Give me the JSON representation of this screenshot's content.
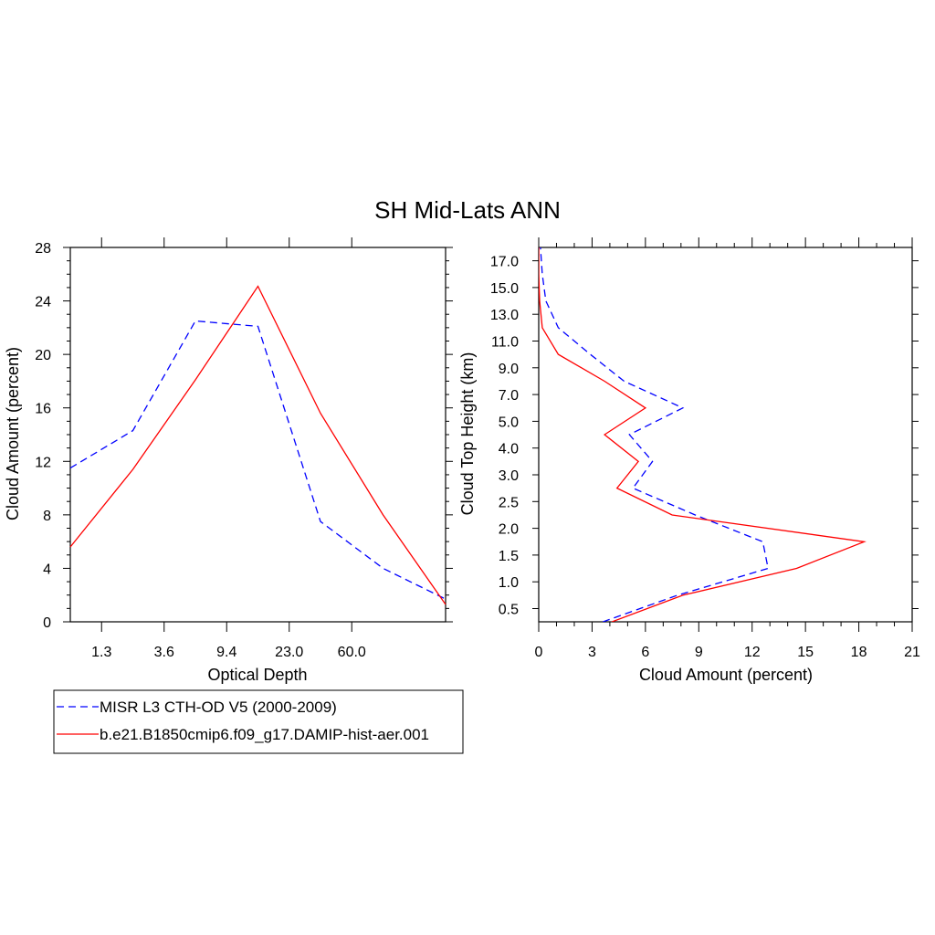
{
  "title": "SH Mid-Lats ANN",
  "chart_data": [
    {
      "type": "line",
      "xlabel": "Optical Depth",
      "ylabel": "Cloud Amount (percent)",
      "x": [
        1,
        2,
        3,
        4,
        5,
        6,
        7
      ],
      "x_tick_labels": [
        "1.3",
        "3.6",
        "9.4",
        "23.0",
        "60.0"
      ],
      "x_tick_positions": [
        1.5,
        2.5,
        3.5,
        4.5,
        5.5
      ],
      "xlim": [
        1,
        7
      ],
      "ylim": [
        0,
        28
      ],
      "y_ticks": [
        0,
        4,
        8,
        12,
        16,
        20,
        24,
        28
      ],
      "series": [
        {
          "name": "MISR L3 CTH-OD V5 (2000-2009)",
          "color": "#0000ff",
          "dash": "dashed",
          "values": [
            11.5,
            14.3,
            22.5,
            22.1,
            7.5,
            4.0,
            1.7
          ]
        },
        {
          "name": "b.e21.B1850cmip6.f09_g17.DAMIP-hist-aer.001",
          "color": "#ff0000",
          "dash": "solid",
          "values": [
            5.6,
            11.4,
            18.1,
            25.1,
            15.6,
            8.0,
            1.3
          ]
        }
      ]
    },
    {
      "type": "line",
      "xlabel": "Cloud Amount (percent)",
      "ylabel": "Cloud Top Height (km)",
      "xlim": [
        0,
        21
      ],
      "x_ticks": [
        0,
        3,
        6,
        9,
        12,
        15,
        18,
        21
      ],
      "y_tick_labels": [
        "0.5",
        "1.0",
        "1.5",
        "2.0",
        "2.5",
        "3.0",
        "4.0",
        "5.0",
        "7.0",
        "9.0",
        "11.0",
        "13.0",
        "15.0",
        "17.0"
      ],
      "series": [
        {
          "name": "MISR L3 CTH-OD V5 (2000-2009)",
          "color": "#0000ff",
          "dash": "dashed",
          "heights": [
            0.25,
            0.75,
            1.25,
            1.75,
            2.25,
            2.75,
            3.5,
            4.5,
            6.0,
            8.0,
            10.0,
            12.0,
            14.0,
            16.0,
            18.0
          ],
          "values": [
            3.6,
            7.8,
            12.9,
            12.6,
            8.8,
            5.3,
            6.4,
            5.1,
            8.1,
            4.8,
            2.9,
            1.1,
            0.4,
            0.2,
            0.1
          ]
        },
        {
          "name": "b.e21.B1850cmip6.f09_g17.DAMIP-hist-aer.001",
          "color": "#ff0000",
          "dash": "solid",
          "heights": [
            0.25,
            0.75,
            1.25,
            1.75,
            2.25,
            2.75,
            3.5,
            4.5,
            6.0,
            8.0,
            10.0,
            12.0,
            14.0,
            16.0,
            18.0
          ],
          "values": [
            4.1,
            8.1,
            14.5,
            18.3,
            7.5,
            4.4,
            5.6,
            3.7,
            6.0,
            3.7,
            1.1,
            0.2,
            0.05,
            0.0,
            0.0
          ]
        }
      ]
    }
  ],
  "legend": [
    {
      "label": "MISR L3 CTH-OD V5 (2000-2009)",
      "color": "#0000ff",
      "dash": "dashed"
    },
    {
      "label": "b.e21.B1850cmip6.f09_g17.DAMIP-hist-aer.001",
      "color": "#ff0000",
      "dash": "solid"
    }
  ]
}
